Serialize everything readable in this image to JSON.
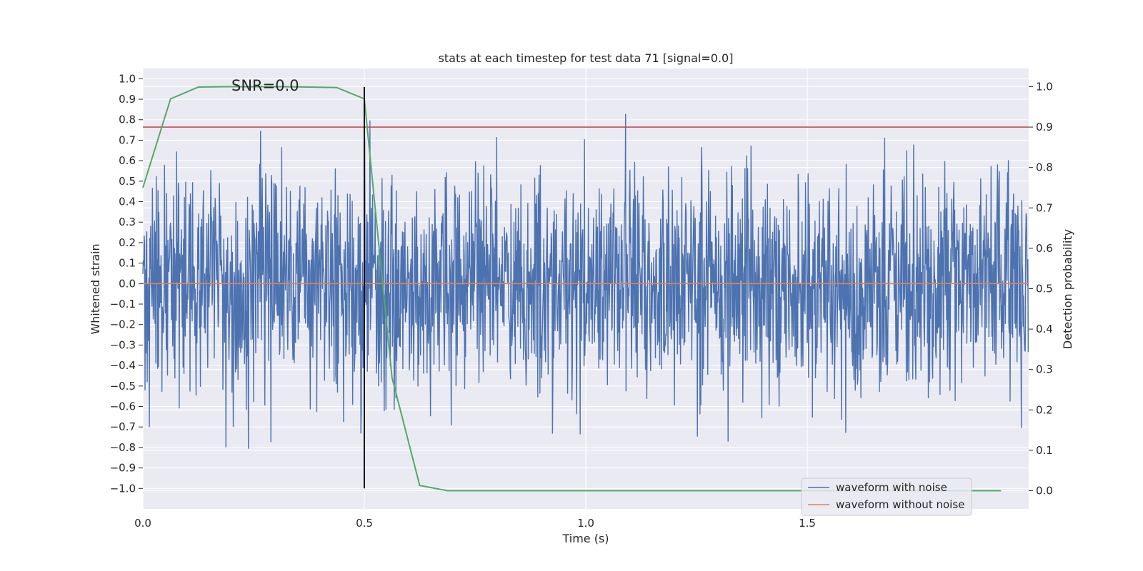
{
  "chart_data": {
    "type": "line",
    "title": "stats at each timestep for test data 71 [signal=0.0]",
    "xlabel": "Time (s)",
    "ylabel": "Whitened strain",
    "ylabel_right": "Detection probability",
    "xlim": [
      0.0,
      2.0
    ],
    "ylim": [
      -1.1,
      1.05
    ],
    "ylim_right": [
      -0.045,
      1.045
    ],
    "x_ticks": [
      0.0,
      0.5,
      1.0,
      1.5
    ],
    "x_tick_labels": [
      "0.0",
      "0.5",
      "1.0",
      "1.5"
    ],
    "y_ticks": [
      1.0,
      0.9,
      0.8,
      0.7,
      0.6,
      0.5,
      0.4,
      0.3,
      0.2,
      0.1,
      0.0,
      -0.1,
      -0.2,
      -0.3,
      -0.4,
      -0.5,
      -0.6,
      -0.7,
      -0.8,
      -0.9,
      -1.0
    ],
    "y_tick_labels": [
      "1.0",
      "0.9",
      "0.8",
      "0.7",
      "0.6",
      "0.5",
      "0.4",
      "0.3",
      "0.2",
      "0.1",
      "0.0",
      "−0.1",
      "−0.2",
      "−0.3",
      "−0.4",
      "−0.5",
      "−0.6",
      "−0.7",
      "−0.8",
      "−0.9",
      "−1.0"
    ],
    "y_right_ticks": [
      1.0,
      0.9,
      0.8,
      0.7,
      0.6,
      0.5,
      0.4,
      0.3,
      0.2,
      0.1,
      0.0
    ],
    "y_right_tick_labels": [
      "1.0",
      "0.9",
      "0.8",
      "0.7",
      "0.6",
      "0.5",
      "0.4",
      "0.3",
      "0.2",
      "0.1",
      "0.0"
    ],
    "annotation": "SNR=0.0",
    "annotation_at": {
      "x": 0.2,
      "y": 0.97
    },
    "grid": true,
    "legend_location": "lower-right",
    "series": [
      {
        "name": "waveform with noise",
        "color": "#4c72b0",
        "axis": "left",
        "note": "whitened noise, approximately 2048 samples in [0, 2] s, amplitude roughly within [-1.0, 0.96]",
        "n_samples": 2048,
        "amp_range": [
          -1.0,
          0.96
        ],
        "seed": 71
      },
      {
        "name": "waveform without noise",
        "color": "#dd8452",
        "axis": "left",
        "x": [
          0.0,
          2.0
        ],
        "y": [
          0.0,
          0.0
        ]
      },
      {
        "name": "detection probability",
        "color": "#55a868",
        "axis": "right",
        "in_legend": false,
        "x": [
          0.0,
          0.0625,
          0.125,
          0.1875,
          0.25,
          0.3125,
          0.375,
          0.4375,
          0.5,
          0.5625,
          0.625,
          0.6875,
          0.75,
          0.8125,
          0.875,
          0.9375,
          1.0,
          1.0625,
          1.125,
          1.1875,
          1.25,
          1.3125,
          1.375,
          1.4375,
          1.5,
          1.5625,
          1.625,
          1.6875,
          1.75,
          1.8125,
          1.875,
          1.9375
        ],
        "y": [
          0.75,
          0.97,
          0.999,
          1.0,
          1.0,
          1.0,
          0.999,
          0.998,
          0.97,
          0.28,
          0.013,
          0.0,
          0.0,
          0.0,
          0.0,
          0.0,
          0.0,
          0.0,
          0.0,
          0.0,
          0.0,
          0.0,
          0.0,
          0.0,
          0.0,
          0.0,
          0.0,
          0.0,
          0.0,
          0.0,
          0.0,
          0.0
        ]
      }
    ],
    "hlines": [
      {
        "name": "threshold",
        "axis": "right",
        "y": 0.9,
        "color": "#c44e52"
      }
    ],
    "vlines": [
      {
        "name": "marker",
        "x": 0.5,
        "ymin": -1.0,
        "ymax": 0.96,
        "color": "#000000"
      }
    ],
    "colors": {
      "plot_bg": "#eaeaf2",
      "grid": "#ffffff",
      "text": "#262626"
    }
  }
}
